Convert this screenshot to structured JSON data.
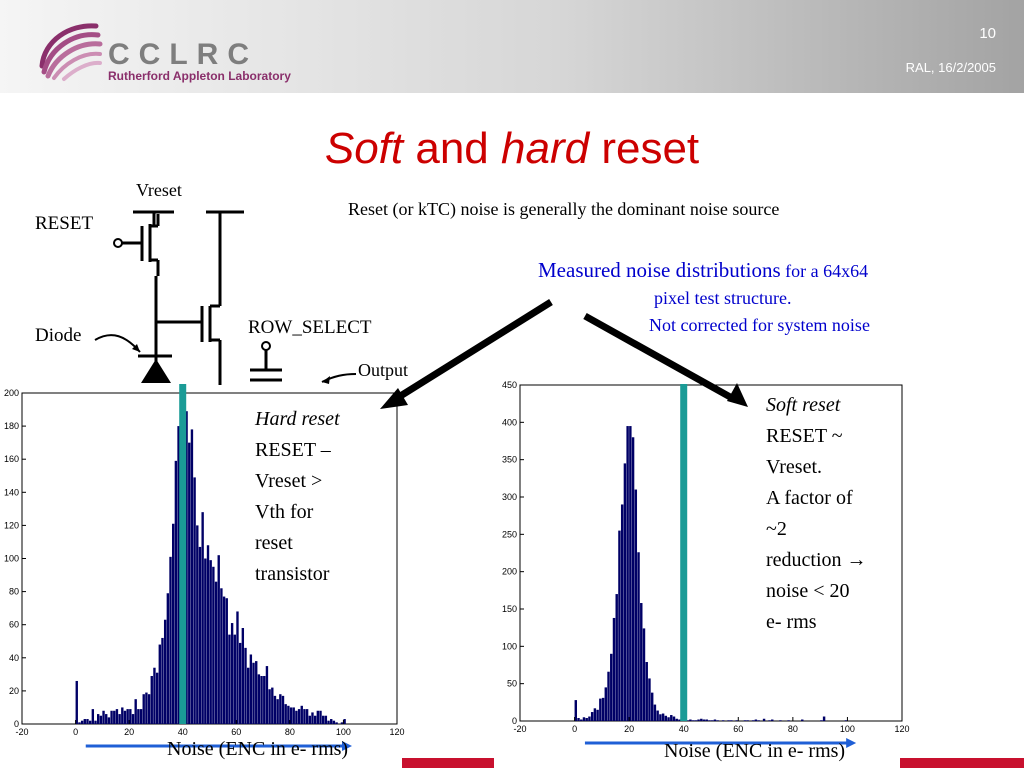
{
  "header": {
    "org_abbrev": "CCLRC",
    "org_name": "Rutherford Appleton Laboratory",
    "page_number": "10",
    "date_line": "RAL, 16/2/2005",
    "logo_icon": "cclrc-sphere-logo-icon"
  },
  "title": {
    "part1": "Soft",
    "part2": " and ",
    "part3": "hard",
    "part4": " reset"
  },
  "circuit": {
    "vreset": "Vreset",
    "reset": "RESET",
    "diode": "Diode",
    "row_select": "ROW_SELECT",
    "output": "Output"
  },
  "notes": {
    "ktc": "Reset (or kTC) noise is generally the dominant noise source",
    "measured_big": "Measured noise distributions",
    "measured_small": " for a 64x64",
    "line2": "pixel test structure.",
    "line3": "Not corrected for system noise"
  },
  "hard_caption": {
    "line1": "Hard reset",
    "line2": "RESET –",
    "line3": "Vreset >",
    "line4": "Vth for",
    "line5": "reset",
    "line6": "transistor"
  },
  "soft_caption": {
    "line1": "Soft reset",
    "line2": "RESET ~",
    "line3": "Vreset.",
    "line4": "A factor of",
    "line5": "~2",
    "line6": "reduction →",
    "line7": "noise < 20",
    "line8": "e- rms"
  },
  "footers": {
    "left": "Noise (ENC in e- rms)",
    "right": "Noise (ENC in e- rms)"
  },
  "colors": {
    "title": "#cc0000",
    "bars": "#000066",
    "marker": "#1a9b96",
    "arrow_blue": "#1f5fd6",
    "note_blue": "#0000cc",
    "corner": "#c8102e"
  },
  "chart_data": [
    {
      "type": "bar",
      "x_ticks": [
        -20,
        0,
        20,
        40,
        60,
        80,
        100,
        120
      ],
      "y_ticks": [
        0,
        20,
        40,
        60,
        80,
        100,
        120,
        140,
        160,
        180,
        200
      ],
      "xlim": [
        -20,
        120
      ],
      "ylim": [
        0,
        200
      ],
      "marker_x": 40,
      "bins": {
        "start": 0,
        "width": 1,
        "values": [
          26,
          1,
          2,
          3,
          3,
          2,
          9,
          2,
          6,
          5,
          8,
          6,
          4,
          8,
          8,
          9,
          6,
          10,
          8,
          9,
          9,
          6,
          15,
          9,
          9,
          18,
          19,
          18,
          29,
          34,
          31,
          48,
          52,
          63,
          79,
          101,
          121,
          159,
          180,
          196,
          200,
          189,
          170,
          178,
          149,
          120,
          107,
          128,
          100,
          108,
          99,
          95,
          86,
          102,
          82,
          77,
          76,
          54,
          61,
          54,
          68,
          49,
          58,
          46,
          34,
          42,
          37,
          38,
          30,
          29,
          29,
          35,
          21,
          22,
          17,
          15,
          18,
          17,
          12,
          11,
          10,
          10,
          8,
          9,
          11,
          9,
          9,
          5,
          7,
          5,
          8,
          8,
          5,
          5,
          2,
          3,
          2,
          1,
          0,
          1,
          3
        ]
      }
    },
    {
      "type": "bar",
      "x_ticks": [
        -20,
        0,
        20,
        40,
        60,
        80,
        100,
        120
      ],
      "y_ticks": [
        0,
        50,
        100,
        150,
        200,
        250,
        300,
        350,
        400,
        450
      ],
      "xlim": [
        -20,
        120
      ],
      "ylim": [
        0,
        450
      ],
      "marker_x": 40,
      "bins": {
        "start": 0,
        "width": 1,
        "values": [
          28,
          4,
          2,
          5,
          4,
          6,
          12,
          17,
          15,
          30,
          31,
          45,
          66,
          90,
          138,
          170,
          255,
          290,
          345,
          395,
          395,
          380,
          310,
          226,
          158,
          124,
          79,
          57,
          38,
          22,
          14,
          9,
          10,
          7,
          5,
          8,
          6,
          3,
          2,
          4,
          2,
          1,
          2,
          1,
          1,
          2,
          3,
          2,
          2,
          1,
          1,
          2,
          1,
          0,
          1,
          0,
          1,
          1,
          0,
          1,
          0,
          0,
          1,
          1,
          0,
          1,
          2,
          1,
          0,
          3,
          0,
          1,
          2,
          0,
          0,
          1,
          0,
          0,
          1,
          0,
          0,
          0,
          0,
          2,
          0,
          0,
          0,
          0,
          0,
          0,
          1,
          6,
          0,
          0,
          0,
          0,
          0,
          0,
          0,
          1
        ]
      }
    }
  ]
}
